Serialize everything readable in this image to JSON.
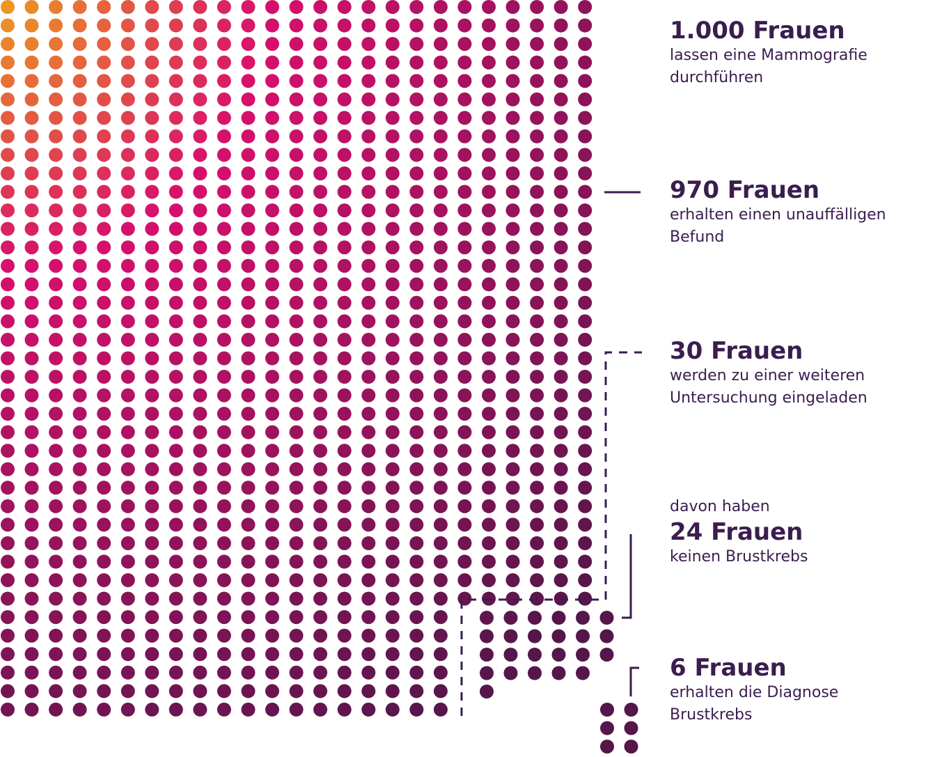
{
  "groups": [
    {
      "count_text": "1.000 Frauen",
      "description": [
        "lassen eine Mammografie",
        "durchführen"
      ]
    },
    {
      "count_text": "970 Frauen",
      "description": [
        "erhalten einen unauffälligen",
        "Befund"
      ]
    },
    {
      "count_text": "30 Frauen",
      "description": [
        "werden zu einer weiteren",
        "Untersuchung eingeladen"
      ]
    },
    {
      "prefix": "davon haben",
      "count_text": "24 Frauen",
      "description": [
        "keinen Brustkrebs"
      ]
    },
    {
      "count_text": "6 Frauen",
      "description": [
        "erhalten die Diagnose",
        "Brustkrebs"
      ]
    }
  ],
  "chart_data": {
    "type": "dot-matrix",
    "total": 1000,
    "segments": [
      {
        "label": "970 Frauen",
        "count": 970
      },
      {
        "label": "24 Frauen",
        "count": 24
      },
      {
        "label": "6 Frauen",
        "count": 6
      }
    ]
  },
  "colors": {
    "gradient_start": "#ee9b1f",
    "gradient_mid": "#d7106c",
    "gradient_end": "#55164a",
    "text": "#3b1d4f",
    "connector": "#3b1d4f"
  }
}
